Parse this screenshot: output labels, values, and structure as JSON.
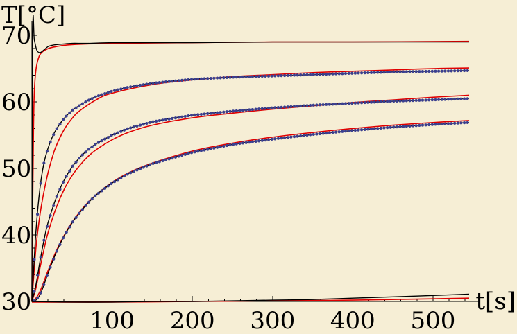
{
  "chart_data": {
    "type": "line",
    "title": "",
    "xlabel": "t[s]",
    "ylabel": "T[°C]",
    "xlim": [
      0,
      545
    ],
    "ylim": [
      30,
      70
    ],
    "grid": false,
    "x_ticks": [
      100,
      200,
      300,
      400,
      500
    ],
    "y_ticks": [
      30,
      40,
      50,
      60,
      70
    ],
    "x_tick_labels": [
      "100",
      "200",
      "300",
      "400",
      "500"
    ],
    "y_tick_labels": [
      "30",
      "40",
      "50",
      "60",
      "70"
    ],
    "colors": {
      "background": "#f6eed5",
      "measured": "#000000",
      "model": "#e00000",
      "points": "#3a3f8f"
    },
    "series": [
      {
        "kind": "measured",
        "style": "line",
        "x": [
          0,
          1,
          3,
          6,
          10,
          15,
          20,
          25,
          30,
          40,
          50,
          70,
          100,
          150,
          200,
          300,
          400,
          500,
          545
        ],
        "y": [
          30,
          70.0,
          69.3,
          67.8,
          67.4,
          67.8,
          68.3,
          68.5,
          68.6,
          68.7,
          68.8,
          68.8,
          68.9,
          68.9,
          68.9,
          69.0,
          69.0,
          69.0,
          69.0
        ]
      },
      {
        "kind": "model",
        "style": "line",
        "x": [
          0,
          1,
          2,
          3,
          5,
          8,
          12,
          20,
          30,
          50,
          100,
          200,
          300,
          400,
          545
        ],
        "y": [
          30,
          45.0,
          56.0,
          61.5,
          64.8,
          66.5,
          67.4,
          68.0,
          68.3,
          68.6,
          68.8,
          68.9,
          69.0,
          69.0,
          69.1
        ]
      },
      {
        "kind": "measured",
        "style": "line+points",
        "x": [
          0,
          5,
          10,
          15,
          20,
          25,
          30,
          40,
          50,
          60,
          70,
          80,
          100,
          120,
          150,
          200,
          250,
          300,
          350,
          400,
          450,
          500,
          545
        ],
        "y": [
          30,
          40.5,
          47.0,
          50.8,
          53.0,
          54.6,
          55.8,
          57.5,
          58.7,
          59.5,
          60.2,
          60.8,
          61.6,
          62.2,
          62.8,
          63.4,
          63.7,
          63.9,
          64.1,
          64.3,
          64.5,
          64.6,
          64.7
        ]
      },
      {
        "kind": "model",
        "style": "line",
        "x": [
          0,
          5,
          10,
          15,
          20,
          25,
          30,
          40,
          50,
          60,
          80,
          100,
          150,
          200,
          250,
          300,
          350,
          400,
          450,
          500,
          545
        ],
        "y": [
          30,
          38.0,
          43.0,
          46.5,
          49.3,
          51.5,
          53.3,
          55.8,
          57.5,
          58.7,
          60.3,
          61.3,
          62.6,
          63.3,
          63.8,
          64.1,
          64.4,
          64.6,
          64.8,
          65.0,
          65.1
        ]
      },
      {
        "kind": "measured",
        "style": "line+points",
        "x": [
          0,
          5,
          10,
          15,
          20,
          30,
          40,
          50,
          60,
          70,
          80,
          100,
          120,
          150,
          200,
          250,
          300,
          350,
          400,
          450,
          500,
          545
        ],
        "y": [
          30,
          32.5,
          36.0,
          39.2,
          41.8,
          45.5,
          48.2,
          50.2,
          51.7,
          52.8,
          53.7,
          55.0,
          56.0,
          57.0,
          58.0,
          58.6,
          59.1,
          59.5,
          59.8,
          60.1,
          60.3,
          60.5
        ]
      },
      {
        "kind": "model",
        "style": "line",
        "x": [
          0,
          5,
          10,
          15,
          20,
          30,
          40,
          50,
          60,
          70,
          80,
          100,
          120,
          150,
          200,
          250,
          300,
          350,
          400,
          450,
          500,
          545
        ],
        "y": [
          30,
          32.0,
          35.0,
          37.8,
          40.3,
          44.0,
          46.8,
          48.9,
          50.5,
          51.8,
          52.8,
          54.3,
          55.4,
          56.5,
          57.6,
          58.3,
          58.9,
          59.4,
          59.9,
          60.3,
          60.7,
          61.0
        ]
      },
      {
        "kind": "measured",
        "style": "line+points",
        "x": [
          0,
          5,
          10,
          15,
          20,
          30,
          40,
          50,
          60,
          70,
          80,
          100,
          120,
          150,
          200,
          250,
          300,
          350,
          400,
          450,
          500,
          545
        ],
        "y": [
          30,
          30.2,
          31.0,
          32.5,
          34.2,
          37.3,
          39.8,
          41.8,
          43.4,
          44.8,
          46.0,
          47.8,
          49.2,
          50.7,
          52.4,
          53.6,
          54.4,
          55.1,
          55.7,
          56.2,
          56.6,
          56.9
        ]
      },
      {
        "kind": "model",
        "style": "line",
        "x": [
          0,
          5,
          10,
          15,
          20,
          30,
          40,
          50,
          60,
          70,
          80,
          100,
          120,
          150,
          200,
          250,
          300,
          350,
          400,
          450,
          500,
          545
        ],
        "y": [
          30,
          30.5,
          31.5,
          33.0,
          34.6,
          37.5,
          39.9,
          41.9,
          43.5,
          44.9,
          46.0,
          47.9,
          49.3,
          50.8,
          52.6,
          53.8,
          54.7,
          55.4,
          56.0,
          56.5,
          56.9,
          57.2
        ]
      },
      {
        "kind": "measured",
        "style": "line",
        "x": [
          0,
          50,
          100,
          150,
          200,
          250,
          300,
          350,
          400,
          450,
          500,
          545
        ],
        "y": [
          30.0,
          29.9,
          29.9,
          30.0,
          30.0,
          30.1,
          30.2,
          30.3,
          30.5,
          30.7,
          30.9,
          31.1
        ]
      },
      {
        "kind": "model",
        "style": "line",
        "x": [
          0,
          100,
          200,
          300,
          400,
          500,
          545
        ],
        "y": [
          29.9,
          29.9,
          30.0,
          30.1,
          30.2,
          30.4,
          30.5
        ]
      }
    ]
  }
}
